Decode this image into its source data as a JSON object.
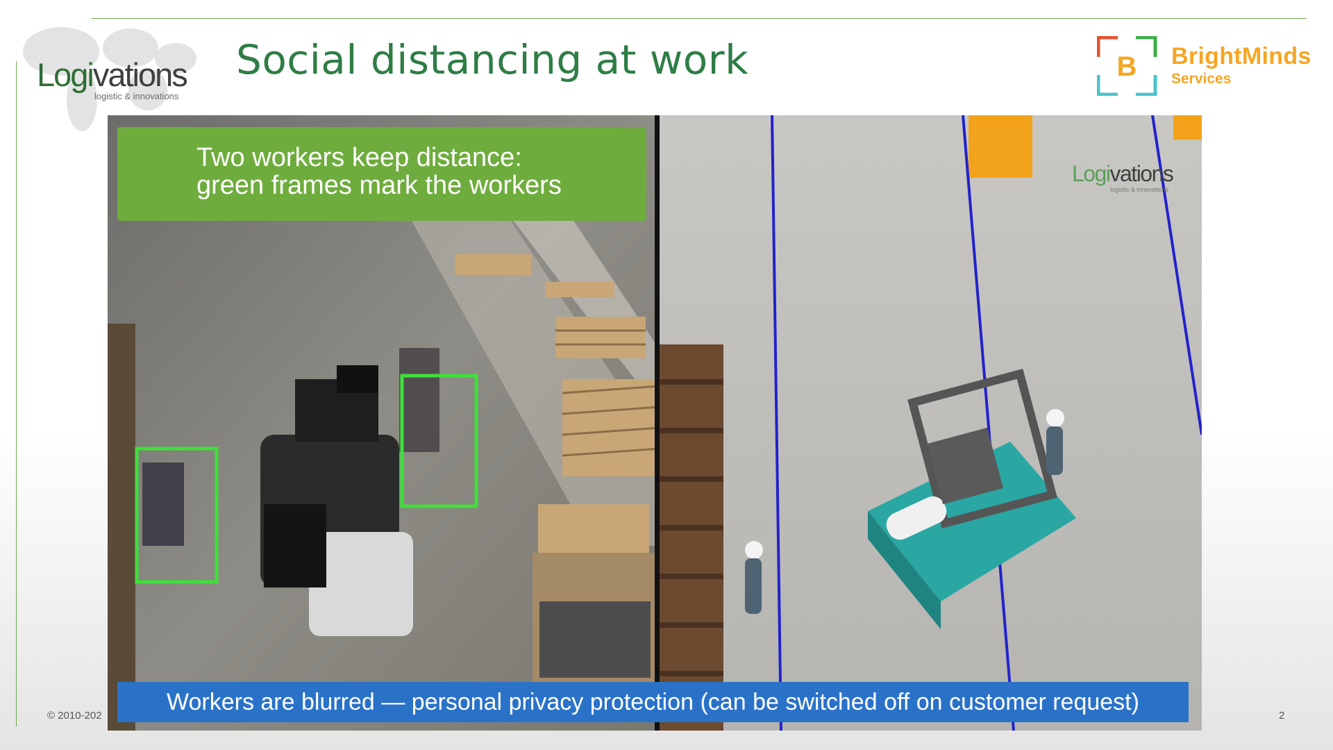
{
  "slide": {
    "title": "Social distancing at work",
    "copyright": "© 2010-202",
    "page_number": "2"
  },
  "logo_left": {
    "word_part1": "Logi",
    "word_part2": "vations",
    "tagline": "logistic & innovations",
    "colors": {
      "primary": "#2e6e34",
      "secondary": "#3f3f3f"
    }
  },
  "logo_right": {
    "mark_letter": "B",
    "name": "BrightMinds",
    "subtitle": "Services",
    "colors": {
      "orange": "#f5a623",
      "red": "#e8502f",
      "teal": "#4cc3c9"
    }
  },
  "video": {
    "caption_top_line1": "Two workers keep distance:",
    "caption_top_line2": "green frames mark the workers",
    "caption_bottom": "Workers are blurred — personal privacy protection (can be switched off on customer request)",
    "overlay_logo": {
      "word_part1": "Logi",
      "word_part2": "vations",
      "tagline": "logistic & innovations"
    },
    "colors": {
      "caption_top_bg": "#6fac3e",
      "caption_bottom_bg": "#2a72c8",
      "worker_frame": "#3ee03a",
      "lane_line": "#2222cc",
      "forklift_teal": "#2aa7a3"
    }
  }
}
